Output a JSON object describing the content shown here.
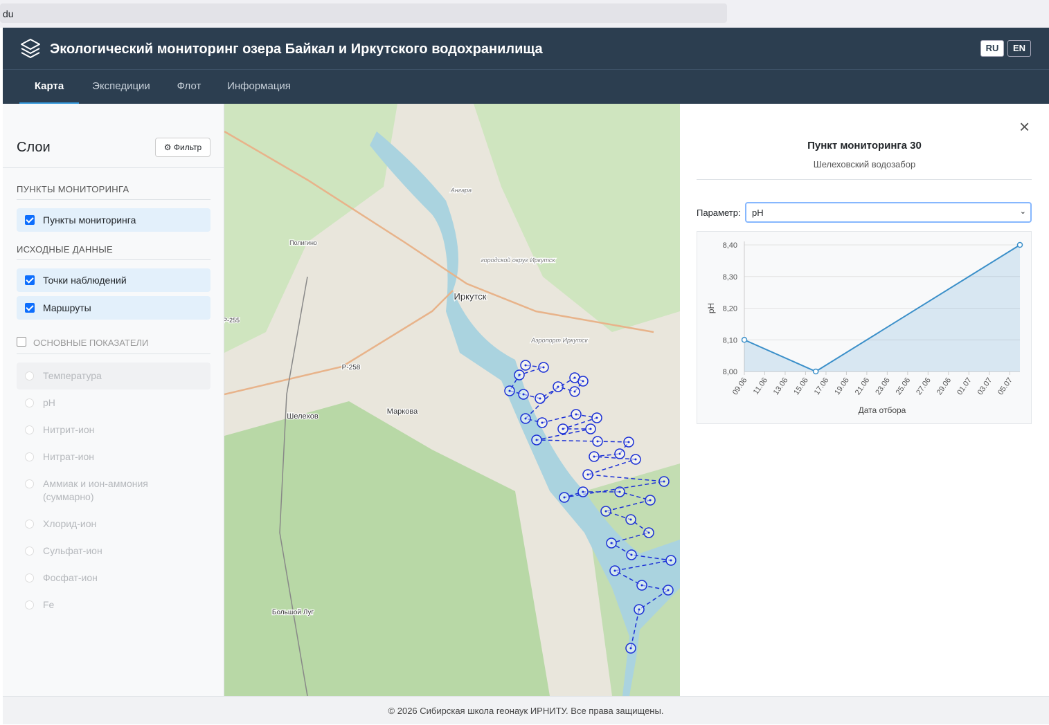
{
  "browser": {
    "url": "du"
  },
  "header": {
    "title": "Экологический мониторинг озера Байкал и Иркутского водохранилища",
    "languages": [
      "RU",
      "EN"
    ],
    "active_language": 0
  },
  "nav": {
    "tabs": [
      "Карта",
      "Экспедиции",
      "Флот",
      "Информация"
    ],
    "active": 0
  },
  "sidebar": {
    "title": "Слои",
    "filter_button": "Фильтр",
    "sections": [
      {
        "title": "ПУНКТЫ МОНИТОРИНГА",
        "items": [
          {
            "label": "Пункты мониторинга",
            "checked": true
          }
        ]
      },
      {
        "title": "ИСХОДНЫЕ ДАННЫЕ",
        "items": [
          {
            "label": "Точки наблюдений",
            "checked": true
          },
          {
            "label": "Маршруты",
            "checked": true
          }
        ]
      }
    ],
    "indicators": {
      "title": "ОСНОВНЫЕ ПОКАЗАТЕЛИ",
      "checked": false,
      "options": [
        "Температура",
        "pH",
        "Нитрит-ион",
        "Нитрат-ион",
        "Аммиак и ион-аммония (суммарно)",
        "Хлорид-ион",
        "Сульфат-ион",
        "Фосфат-ион",
        "Fe"
      ]
    }
  },
  "map": {
    "labels": [
      "Иркутск",
      "Шелехов",
      "Маркова",
      "Большой Луг",
      "Р-258",
      "Р-255",
      "Ангара",
      "Полигино",
      "городской округ Иркутск",
      "Аэропорт Иркутск"
    ]
  },
  "panel": {
    "title": "Пункт мониторинга 30",
    "subtitle": "Шелеховский водозабор",
    "param_label": "Параметр:",
    "param_value": "pH"
  },
  "chart_data": {
    "type": "line",
    "x": [
      "09.06",
      "16.06",
      "06.07"
    ],
    "values": [
      8.1,
      8.0,
      8.4
    ],
    "color": "#3a8fc9",
    "xlim": [
      "09.06",
      "06.07"
    ],
    "xticks": [
      "09.06",
      "11.06",
      "13.06",
      "15.06",
      "17.06",
      "19.06",
      "21.06",
      "23.06",
      "25.06",
      "27.06",
      "29.06",
      "01.07",
      "03.07",
      "05.07"
    ],
    "ylim": [
      8.0,
      8.4
    ],
    "yticks": [
      {
        "value": 8.0,
        "label": "8,00"
      },
      {
        "value": 8.1,
        "label": "8,10"
      },
      {
        "value": 8.2,
        "label": "8,20"
      },
      {
        "value": 8.3,
        "label": "8,30"
      },
      {
        "value": 8.4,
        "label": "8,40"
      }
    ],
    "xlabel": "Дата отбора",
    "ylabel": "pH",
    "grid": true
  },
  "footer": {
    "text": "© 2026 Сибирская школа геонаук ИРНИТУ. Все права защищены."
  }
}
